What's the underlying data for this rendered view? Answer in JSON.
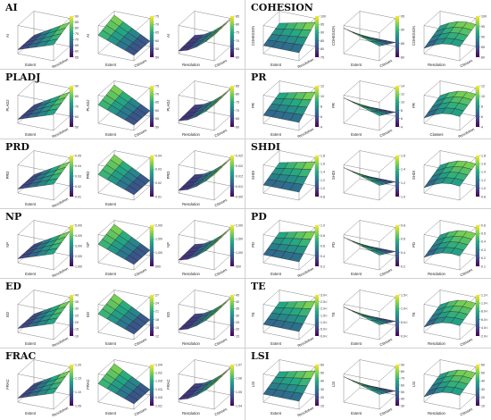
{
  "colors": {
    "scale": [
      "#440154",
      "#414487",
      "#2a788e",
      "#22a884",
      "#7ad151",
      "#fde725"
    ],
    "frame": "#333333",
    "divider": "#d0d0d0"
  },
  "chart_data": [
    {
      "type": "surface",
      "title": "AI",
      "plots": [
        {
          "zlabel": "AI",
          "xlabel": "Extent",
          "ylabel": "Resolution",
          "colorbar_ticks": [
            "90",
            "85",
            "80",
            "75",
            "70",
            "65",
            "60",
            "55"
          ]
        },
        {
          "zlabel": "AI",
          "xlabel": "Extent",
          "ylabel": "Classes",
          "colorbar_ticks": [
            "75",
            "70",
            "65",
            "60",
            "55",
            "50"
          ]
        },
        {
          "zlabel": "AI",
          "xlabel": "Resolution",
          "ylabel": "Classes",
          "colorbar_ticks": [
            "85",
            "80",
            "75",
            "70",
            "65",
            "60"
          ]
        }
      ]
    },
    {
      "type": "surface",
      "title": "COHESION",
      "plots": [
        {
          "zlabel": "COHESION",
          "xlabel": "Extent",
          "ylabel": "Resolution",
          "colorbar_ticks": [
            "100",
            "95",
            "90",
            "85",
            "80",
            "75"
          ]
        },
        {
          "zlabel": "COHESION",
          "xlabel": "Extent",
          "ylabel": "Classes",
          "colorbar_ticks": [
            "95",
            "90",
            "85",
            "80"
          ]
        },
        {
          "zlabel": "COHESION",
          "xlabel": "Resolution",
          "ylabel": "Classes",
          "colorbar_ticks": [
            "100",
            "95",
            "90",
            "85",
            "80"
          ]
        }
      ]
    },
    {
      "type": "surface",
      "title": "PLADJ",
      "plots": [
        {
          "zlabel": "PLADJ",
          "xlabel": "Extent",
          "ylabel": "Resolution",
          "colorbar_ticks": [
            "90",
            "80",
            "70",
            "60",
            "50"
          ]
        },
        {
          "zlabel": "PLADJ",
          "xlabel": "Extent",
          "ylabel": "Classes",
          "colorbar_ticks": [
            "75",
            "70",
            "65",
            "60",
            "55",
            "50"
          ]
        },
        {
          "zlabel": "PLADJ",
          "xlabel": "Resolution",
          "ylabel": "Classes",
          "colorbar_ticks": [
            "85",
            "80",
            "75",
            "70",
            "65",
            "60"
          ]
        }
      ]
    },
    {
      "type": "surface",
      "title": "PR",
      "plots": [
        {
          "zlabel": "PR",
          "xlabel": "Extent",
          "ylabel": "Resolution",
          "colorbar_ticks": [
            "12",
            "10",
            "8",
            "6",
            "4"
          ]
        },
        {
          "zlabel": "PR",
          "xlabel": "Extent",
          "ylabel": "Classes",
          "colorbar_ticks": [
            "14",
            "12",
            "10",
            "8",
            "6",
            "4"
          ]
        },
        {
          "zlabel": "PR",
          "xlabel": "Classes",
          "ylabel": "Resolution",
          "colorbar_ticks": [
            "12",
            "10",
            "8",
            "6",
            "4"
          ]
        }
      ]
    },
    {
      "type": "surface",
      "title": "PRD",
      "plots": [
        {
          "zlabel": "PRD",
          "xlabel": "Extent",
          "ylabel": "Resolution",
          "colorbar_ticks": [
            "0.05",
            "0.04",
            "0.03",
            "0.02",
            "0.01"
          ]
        },
        {
          "zlabel": "PRD",
          "xlabel": "Extent",
          "ylabel": "",
          "colorbar_ticks": [
            "0.04",
            "0.03",
            "0.02",
            "0.01"
          ]
        },
        {
          "zlabel": "PRD",
          "xlabel": "Resolution",
          "ylabel": "Classes",
          "colorbar_ticks": [
            "0.025",
            "0.020",
            "0.015",
            "0.010",
            "0.005"
          ]
        }
      ]
    },
    {
      "type": "surface",
      "title": "SHDI",
      "plots": [
        {
          "zlabel": "SHDI",
          "xlabel": "",
          "ylabel": "",
          "colorbar_ticks": [
            "1.8",
            "1.6",
            "1.4",
            "1.2",
            "1.0",
            "0.8"
          ]
        },
        {
          "zlabel": "SHDI",
          "xlabel": "",
          "ylabel": "",
          "colorbar_ticks": [
            "1.6",
            "1.4",
            "1.2",
            "1.0"
          ]
        },
        {
          "zlabel": "SHDI",
          "xlabel": "",
          "ylabel": "",
          "colorbar_ticks": [
            "1.8",
            "1.6",
            "1.4",
            "1.2",
            "1.0",
            "0.8"
          ]
        }
      ]
    },
    {
      "type": "surface",
      "title": "NP",
      "plots": [
        {
          "zlabel": "NP",
          "xlabel": "Extent",
          "ylabel": "Resolution",
          "colorbar_ticks": [
            "5,000",
            "4,000",
            "3,000",
            "2,000",
            "1,000"
          ]
        },
        {
          "zlabel": "NP",
          "xlabel": "Extent",
          "ylabel": "Classes",
          "colorbar_ticks": [
            "2,000",
            "1,500",
            "1,000",
            "500"
          ]
        },
        {
          "zlabel": "NP",
          "xlabel": "Resolution",
          "ylabel": "Classes",
          "colorbar_ticks": [
            "2,000",
            "1,500",
            "1,000",
            "500"
          ]
        }
      ]
    },
    {
      "type": "surface",
      "title": "PD",
      "plots": [
        {
          "zlabel": "PD",
          "xlabel": "Extent",
          "ylabel": "Resolution",
          "colorbar_ticks": [
            "1.0",
            "0.8",
            "0.6",
            "0.4",
            "0.2"
          ]
        },
        {
          "zlabel": "PD",
          "xlabel": "Extent",
          "ylabel": "Classes",
          "colorbar_ticks": [
            "0.8",
            "0.6",
            "0.4",
            "0.2"
          ]
        },
        {
          "zlabel": "PD",
          "xlabel": "Resolution",
          "ylabel": "Classes",
          "colorbar_ticks": [
            "0.6",
            "0.5",
            "0.4",
            "0.3",
            "0.2",
            "0.1"
          ]
        }
      ]
    },
    {
      "type": "surface",
      "title": "ED",
      "plots": [
        {
          "zlabel": "ED",
          "xlabel": "Extent",
          "ylabel": "Resolution",
          "colorbar_ticks": [
            "40",
            "35",
            "30",
            "25",
            "20",
            "15",
            "10"
          ]
        },
        {
          "zlabel": "ED",
          "xlabel": "Extent",
          "ylabel": "Classes",
          "colorbar_ticks": [
            "27",
            "24",
            "21",
            "18",
            "15",
            "12"
          ]
        },
        {
          "zlabel": "ED",
          "xlabel": "Resolution",
          "ylabel": "Classes",
          "colorbar_ticks": [
            "45",
            "40",
            "35",
            "30",
            "25",
            "20",
            "15"
          ]
        }
      ]
    },
    {
      "type": "surface",
      "title": "TE",
      "plots": [
        {
          "zlabel": "TE",
          "xlabel": "Extent",
          "ylabel": "Resolution",
          "colorbar_ticks": [
            "3.0×10⁶",
            "2.5×10⁶",
            "2.0×10⁶",
            "1.5×10⁶",
            "1.0×10⁶",
            "5.0×10⁵",
            "0.0×10⁰"
          ]
        },
        {
          "zlabel": "TE",
          "xlabel": "Extent",
          "ylabel": "Classes",
          "colorbar_ticks": [
            "1.5×10⁶",
            "1.0×10⁶",
            "5.0×10⁵",
            "0.0×10⁰"
          ]
        },
        {
          "zlabel": "TE",
          "xlabel": "Resolution",
          "ylabel": "Classes",
          "colorbar_ticks": [
            "1.2×10⁶",
            "1.0×10⁶",
            "8.0×10⁵",
            "6.0×10⁵",
            "4.0×10⁵",
            "2.0×10⁵"
          ]
        }
      ]
    },
    {
      "type": "surface",
      "title": "FRAC",
      "plots": [
        {
          "zlabel": "FRAC",
          "xlabel": "Extent",
          "ylabel": "Resolution",
          "colorbar_ticks": [
            "1.20",
            "1.15",
            "1.10",
            "1.05"
          ]
        },
        {
          "zlabel": "FRAC",
          "xlabel": "Extent",
          "ylabel": "Classes",
          "colorbar_ticks": [
            "1.0400",
            "1.0375",
            "1.0350",
            "1.0325",
            "1.0300",
            "1.0275"
          ]
        },
        {
          "zlabel": "FRAC",
          "xlabel": "Resolution",
          "ylabel": "Classes",
          "colorbar_ticks": [
            "1.07",
            "1.06",
            "1.05",
            "1.04"
          ]
        }
      ]
    },
    {
      "type": "surface",
      "title": "LSI",
      "plots": [
        {
          "zlabel": "LSI",
          "xlabel": "Extent",
          "ylabel": "Resolution",
          "colorbar_ticks": [
            "60",
            "50",
            "40",
            "30",
            "20",
            "10"
          ]
        },
        {
          "zlabel": "LSI",
          "xlabel": "Extent",
          "ylabel": "Classes",
          "colorbar_ticks": [
            "90",
            "80",
            "70",
            "60",
            "50",
            "40",
            "30"
          ]
        },
        {
          "zlabel": "LSI",
          "xlabel": "Resolution",
          "ylabel": "Classes",
          "colorbar_ticks": [
            "60",
            "50",
            "40",
            "30",
            "20",
            "10"
          ]
        }
      ]
    }
  ]
}
